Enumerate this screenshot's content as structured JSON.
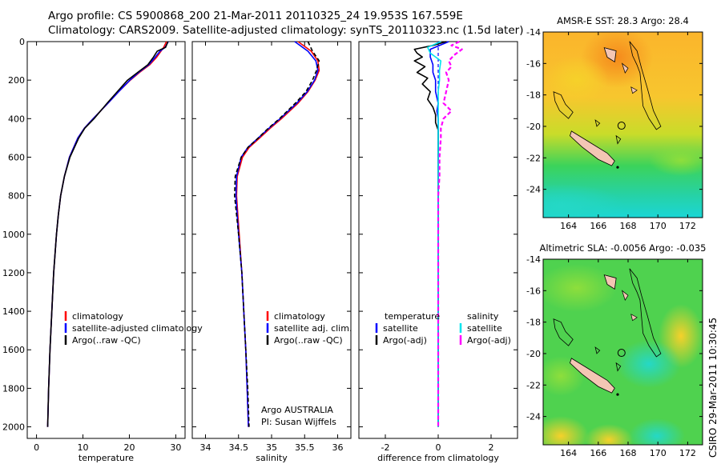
{
  "titles": {
    "line1": "Argo profile: CS 5900868_200 21-Mar-2011 20110325_24 19.953S 167.559E",
    "line2": "Climatology: CARS2009. Satellite-adjusted climatology: synTS_20110323.nc (1.5d later)"
  },
  "footer": {
    "credit": "CSIRO 29-Mar-2011 10:30:45",
    "argo_country": "Argo AUSTRALIA",
    "pi": "PI: Susan Wijffels"
  },
  "colors": {
    "climatology": "#ff0000",
    "satellite": "#0000ff",
    "argo": "#000000",
    "cyan": "#00e5ee",
    "magenta": "#ff00ff",
    "land": "#f4c6b4"
  },
  "chart_data": [
    {
      "type": "line",
      "title": "",
      "xlabel": "temperature",
      "ylabel": "",
      "xlim": [
        -2,
        32
      ],
      "ylim": [
        2060,
        0
      ],
      "xticks": [
        0,
        10,
        20,
        30
      ],
      "yticks": [
        0,
        200,
        400,
        600,
        800,
        1000,
        1200,
        1400,
        1600,
        1800,
        2000
      ],
      "legend": [
        "climatology",
        "satellite-adjusted climatology",
        "Argo(..raw -QC)"
      ],
      "series": [
        {
          "name": "climatology",
          "depth": [
            0,
            30,
            50,
            80,
            120,
            160,
            200,
            260,
            320,
            400,
            450,
            500,
            600,
            700,
            800,
            900,
            1000,
            1200,
            1400,
            1600,
            1800,
            2000
          ],
          "values": [
            28.0,
            27.4,
            26.8,
            25.9,
            24.4,
            22.2,
            20.2,
            17.7,
            15.4,
            12.2,
            10.3,
            8.9,
            7.1,
            6.0,
            5.2,
            4.7,
            4.3,
            3.7,
            3.3,
            2.9,
            2.6,
            2.4
          ]
        },
        {
          "name": "satellite-adjusted climatology",
          "depth": [
            0,
            30,
            50,
            80,
            120,
            160,
            200,
            260,
            320,
            400,
            450,
            500,
            600,
            700,
            800,
            900,
            1000,
            1200,
            1400,
            1600,
            1800,
            2000
          ],
          "values": [
            28.4,
            27.7,
            26.6,
            25.6,
            24.2,
            22.0,
            20.1,
            17.7,
            15.4,
            12.2,
            10.3,
            8.9,
            7.1,
            6.0,
            5.2,
            4.7,
            4.3,
            3.7,
            3.3,
            2.9,
            2.6,
            2.4
          ]
        },
        {
          "name": "Argo(..raw -QC)",
          "depth": [
            0,
            30,
            50,
            80,
            120,
            160,
            200,
            260,
            320,
            400,
            450,
            500,
            600,
            700,
            800,
            900,
            1000,
            1200,
            1400,
            1600,
            1800,
            2000
          ],
          "values": [
            28.3,
            27.8,
            26.0,
            25.2,
            24.0,
            21.8,
            19.6,
            17.4,
            15.2,
            12.4,
            10.4,
            9.1,
            7.2,
            6.0,
            5.2,
            4.7,
            4.3,
            3.7,
            3.3,
            2.9,
            2.6,
            2.4
          ]
        }
      ]
    },
    {
      "type": "line",
      "title": "",
      "xlabel": "salinity",
      "ylabel": "",
      "xlim": [
        33.8,
        36.2
      ],
      "ylim": [
        2060,
        0
      ],
      "xticks": [
        34,
        34.5,
        35,
        35.5,
        36
      ],
      "legend": [
        "climatology",
        "satellite adj. clim.",
        "Argo(..raw -QC)"
      ],
      "series": [
        {
          "name": "climatology",
          "depth": [
            0,
            50,
            100,
            150,
            200,
            260,
            320,
            400,
            450,
            500,
            550,
            600,
            700,
            800,
            900,
            1000,
            1200,
            1400,
            1600,
            1800,
            2000
          ],
          "values": [
            35.4,
            35.6,
            35.7,
            35.72,
            35.66,
            35.55,
            35.4,
            35.15,
            34.98,
            34.82,
            34.66,
            34.56,
            34.48,
            34.47,
            34.49,
            34.51,
            34.55,
            34.58,
            34.61,
            34.63,
            34.65
          ]
        },
        {
          "name": "satellite adj. clim.",
          "depth": [
            0,
            50,
            100,
            150,
            200,
            260,
            320,
            400,
            450,
            500,
            550,
            600,
            700,
            800,
            900,
            1000,
            1200,
            1400,
            1600,
            1800,
            2000
          ],
          "values": [
            35.35,
            35.55,
            35.67,
            35.7,
            35.65,
            35.54,
            35.38,
            35.13,
            34.96,
            34.8,
            34.64,
            34.54,
            34.47,
            34.46,
            34.48,
            34.5,
            34.55,
            34.58,
            34.61,
            34.63,
            34.65
          ]
        },
        {
          "name": "Argo(..raw -QC)",
          "depth": [
            0,
            50,
            100,
            150,
            200,
            260,
            320,
            400,
            450,
            500,
            550,
            600,
            700,
            800,
            900,
            1000,
            1200,
            1400,
            1600,
            1800,
            2000
          ],
          "values": [
            35.55,
            35.62,
            35.72,
            35.68,
            35.62,
            35.52,
            35.36,
            35.12,
            34.95,
            34.8,
            34.64,
            34.54,
            34.45,
            34.44,
            34.47,
            34.5,
            34.55,
            34.58,
            34.61,
            34.64,
            34.66
          ]
        }
      ]
    },
    {
      "type": "line",
      "title": "",
      "xlabel": "difference from climatology",
      "ylabel": "",
      "xlim": [
        -3,
        3
      ],
      "ylim": [
        2060,
        0
      ],
      "xticks": [
        -2,
        0,
        2
      ],
      "legend_headers": [
        "temperature",
        "salinity"
      ],
      "legend": [
        "satellite",
        "Argo(-adj)",
        "satellite",
        "Argo(-adj)"
      ],
      "series": [
        {
          "name": "temperature satellite",
          "depth": [
            0,
            40,
            80,
            120,
            160,
            200,
            260,
            320,
            360,
            400,
            500,
            600,
            800,
            1000,
            1200,
            1400,
            1600,
            1800,
            2000
          ],
          "values": [
            0.4,
            -0.3,
            -0.3,
            -0.2,
            -0.2,
            -0.1,
            -0.1,
            0.0,
            -0.05,
            0.0,
            0.0,
            0.0,
            0.0,
            0.0,
            0.0,
            0.0,
            0.0,
            0.0,
            0.0
          ]
        },
        {
          "name": "temperature Argo(-adj)",
          "depth": [
            0,
            20,
            40,
            60,
            80,
            100,
            130,
            160,
            190,
            220,
            260,
            300,
            340,
            380,
            420,
            460,
            520,
            600,
            700,
            800,
            1000,
            1200,
            1400,
            1600,
            1800,
            2000
          ],
          "values": [
            0.3,
            -0.2,
            -0.9,
            -0.8,
            -0.6,
            -0.9,
            -0.5,
            -0.8,
            -0.4,
            -0.6,
            -0.3,
            -0.4,
            -0.2,
            -0.1,
            -0.1,
            0.0,
            0.0,
            0.0,
            0.0,
            0.0,
            0.0,
            0.0,
            0.0,
            0.0,
            0.0,
            0.0
          ]
        },
        {
          "name": "salinity satellite",
          "depth": [
            0,
            30,
            60,
            100,
            150,
            200,
            260,
            320,
            400,
            500,
            600,
            800,
            1000,
            1200,
            1400,
            1600,
            1800,
            2000
          ],
          "values": [
            0.1,
            -0.4,
            -0.3,
            0.1,
            0.05,
            0.05,
            0.0,
            0.0,
            0.0,
            0.0,
            0.0,
            0.0,
            0.0,
            0.0,
            0.0,
            0.0,
            0.0,
            0.0
          ]
        },
        {
          "name": "salinity Argo(-adj)",
          "depth": [
            0,
            20,
            40,
            70,
            100,
            130,
            160,
            200,
            260,
            320,
            360,
            400,
            450,
            500,
            600,
            700,
            800,
            1000,
            1200,
            1400,
            1600,
            1800,
            2000
          ],
          "values": [
            0.8,
            0.5,
            0.9,
            0.6,
            0.4,
            0.5,
            0.3,
            0.4,
            0.3,
            0.2,
            0.5,
            0.2,
            0.1,
            0.1,
            0.05,
            0.05,
            0.0,
            0.0,
            0.0,
            0.0,
            0.0,
            0.0,
            0.0
          ]
        }
      ]
    },
    {
      "type": "heatmap",
      "title": "AMSR-E SST: 28.3 Argo: 28.4",
      "xlim": [
        162.3,
        173
      ],
      "ylim": [
        -25.8,
        -14
      ],
      "xticks": [
        164,
        166,
        168,
        170,
        172
      ],
      "yticks": [
        -14,
        -16,
        -18,
        -20,
        -22,
        -24
      ]
    },
    {
      "type": "heatmap",
      "title": "Altimetric SLA: -0.0056 Argo: -0.035",
      "xlim": [
        162.3,
        173
      ],
      "ylim": [
        -25.8,
        -14
      ],
      "xticks": [
        164,
        166,
        168,
        170,
        172
      ],
      "yticks": [
        -14,
        -16,
        -18,
        -20,
        -22,
        -24
      ]
    }
  ]
}
